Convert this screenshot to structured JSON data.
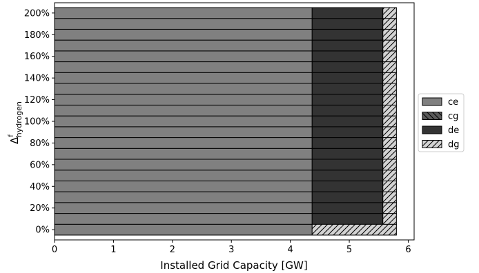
{
  "chart_data": {
    "type": "bar",
    "orientation": "horizontal",
    "stacked": true,
    "title": "",
    "xlabel": "Installed Grid Capacity [GW]",
    "ylabel": {
      "base": "Δ",
      "sup": "f",
      "sub": "hydrogen"
    },
    "xlim": [
      0,
      6.1
    ],
    "x_ticks": [
      "0",
      "1",
      "2",
      "3",
      "4",
      "5",
      "6"
    ],
    "categories": [
      "0%",
      "10%",
      "20%",
      "30%",
      "40%",
      "50%",
      "60%",
      "70%",
      "80%",
      "90%",
      "100%",
      "110%",
      "120%",
      "130%",
      "140%",
      "150%",
      "160%",
      "170%",
      "180%",
      "190%",
      "200%"
    ],
    "y_tick_labels": [
      "0%",
      "20%",
      "40%",
      "60%",
      "80%",
      "100%",
      "120%",
      "140%",
      "160%",
      "180%",
      "200%"
    ],
    "grid": false,
    "legend_position": "right",
    "series": [
      {
        "name": "ce",
        "color": "#808080",
        "hatch": "none",
        "values": [
          4.37,
          4.37,
          4.37,
          4.37,
          4.37,
          4.37,
          4.37,
          4.37,
          4.37,
          4.37,
          4.37,
          4.37,
          4.37,
          4.37,
          4.37,
          4.37,
          4.37,
          4.37,
          4.37,
          4.37,
          4.37
        ]
      },
      {
        "name": "cg",
        "color": "#5a5a5a",
        "hatch": "backslash",
        "values": [
          0,
          0,
          0,
          0,
          0,
          0,
          0,
          0,
          0,
          0,
          0,
          0,
          0,
          0,
          0,
          0,
          0,
          0,
          0,
          0,
          0
        ]
      },
      {
        "name": "de",
        "color": "#333333",
        "hatch": "none",
        "values": [
          0,
          1.2,
          1.2,
          1.2,
          1.2,
          1.2,
          1.2,
          1.2,
          1.2,
          1.2,
          1.2,
          1.2,
          1.2,
          1.2,
          1.2,
          1.2,
          1.2,
          1.2,
          1.2,
          1.2,
          1.2
        ]
      },
      {
        "name": "dg",
        "color": "#d3d3d3",
        "hatch": "slash",
        "values": [
          1.43,
          0.23,
          0.23,
          0.23,
          0.23,
          0.23,
          0.23,
          0.23,
          0.23,
          0.23,
          0.23,
          0.23,
          0.23,
          0.23,
          0.23,
          0.23,
          0.23,
          0.23,
          0.23,
          0.23,
          0.23
        ]
      }
    ]
  }
}
